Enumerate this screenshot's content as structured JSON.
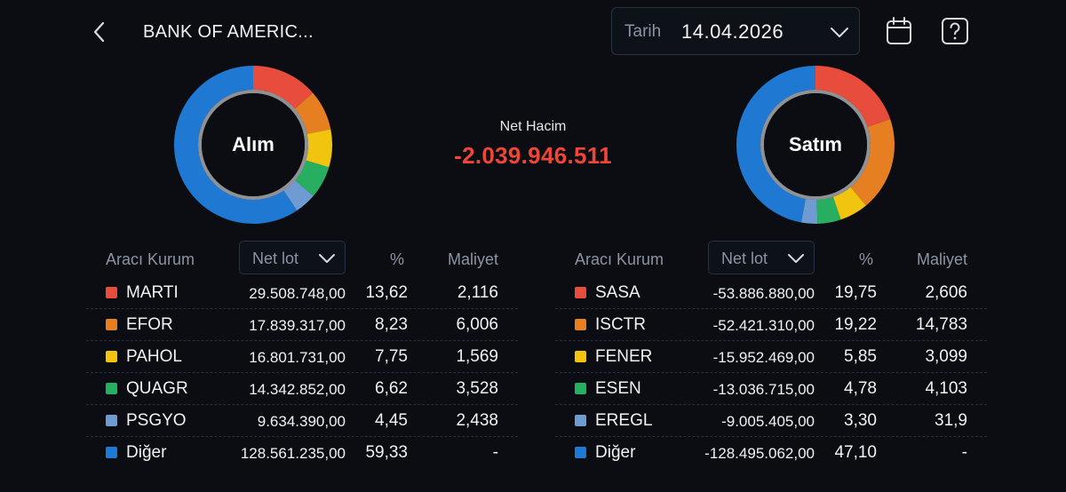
{
  "header": {
    "title": "BANK OF AMERIC...",
    "date_label": "Tarih",
    "date_value": "14.04.2026"
  },
  "buy": {
    "label": "Alım",
    "slices": [
      {
        "name": "MARTI",
        "pct": 13.62,
        "color": "#e84c3d"
      },
      {
        "name": "EFOR",
        "pct": 8.23,
        "color": "#e67e22"
      },
      {
        "name": "PAHOL",
        "pct": 7.75,
        "color": "#f1c40f"
      },
      {
        "name": "QUAGR",
        "pct": 6.62,
        "color": "#27ae60"
      },
      {
        "name": "PSGYO",
        "pct": 4.45,
        "color": "#6e9bd1"
      },
      {
        "name": "Diğer",
        "pct": 59.33,
        "color": "#1f78d1"
      }
    ]
  },
  "sell": {
    "label": "Satım",
    "slices": [
      {
        "name": "SASA",
        "pct": 19.75,
        "color": "#e84c3d"
      },
      {
        "name": "ISCTR",
        "pct": 19.22,
        "color": "#e67e22"
      },
      {
        "name": "FENER",
        "pct": 5.85,
        "color": "#f1c40f"
      },
      {
        "name": "ESEN",
        "pct": 4.78,
        "color": "#27ae60"
      },
      {
        "name": "EREGL",
        "pct": 3.3,
        "color": "#6e9bd1"
      },
      {
        "name": "Diğer",
        "pct": 47.1,
        "color": "#1f78d1"
      }
    ]
  },
  "net": {
    "label": "Net Hacim",
    "value": "-2.039.946.511",
    "color": "#ef4637"
  },
  "buy_table": {
    "col_broker": "Aracı Kurum",
    "col_lot": "Net lot",
    "col_pct": "%",
    "col_cost": "Maliyet",
    "rows": [
      {
        "name": "MARTI",
        "lot": "29.508.748,00",
        "pct": "13,62",
        "cost": "2,116",
        "color": "#e84c3d"
      },
      {
        "name": "EFOR",
        "lot": "17.839.317,00",
        "pct": "8,23",
        "cost": "6,006",
        "color": "#e67e22"
      },
      {
        "name": "PAHOL",
        "lot": "16.801.731,00",
        "pct": "7,75",
        "cost": "1,569",
        "color": "#f1c40f"
      },
      {
        "name": "QUAGR",
        "lot": "14.342.852,00",
        "pct": "6,62",
        "cost": "3,528",
        "color": "#27ae60"
      },
      {
        "name": "PSGYO",
        "lot": "9.634.390,00",
        "pct": "4,45",
        "cost": "2,438",
        "color": "#6e9bd1"
      },
      {
        "name": "Diğer",
        "lot": "128.561.235,00",
        "pct": "59,33",
        "cost": "-",
        "color": "#1f78d1"
      }
    ]
  },
  "sell_table": {
    "col_broker": "Aracı Kurum",
    "col_lot": "Net lot",
    "col_pct": "%",
    "col_cost": "Maliyet",
    "rows": [
      {
        "name": "SASA",
        "lot": "-53.886.880,00",
        "pct": "19,75",
        "cost": "2,606",
        "color": "#e84c3d"
      },
      {
        "name": "ISCTR",
        "lot": "-52.421.310,00",
        "pct": "19,22",
        "cost": "14,783",
        "color": "#e67e22"
      },
      {
        "name": "FENER",
        "lot": "-15.952.469,00",
        "pct": "5,85",
        "cost": "3,099",
        "color": "#f1c40f"
      },
      {
        "name": "ESEN",
        "lot": "-13.036.715,00",
        "pct": "4,78",
        "cost": "4,103",
        "color": "#27ae60"
      },
      {
        "name": "EREGL",
        "lot": "-9.005.405,00",
        "pct": "3,30",
        "cost": "31,9",
        "color": "#6e9bd1"
      },
      {
        "name": "Diğer",
        "lot": "-128.495.062,00",
        "pct": "47,10",
        "cost": "-",
        "color": "#1f78d1"
      }
    ]
  }
}
